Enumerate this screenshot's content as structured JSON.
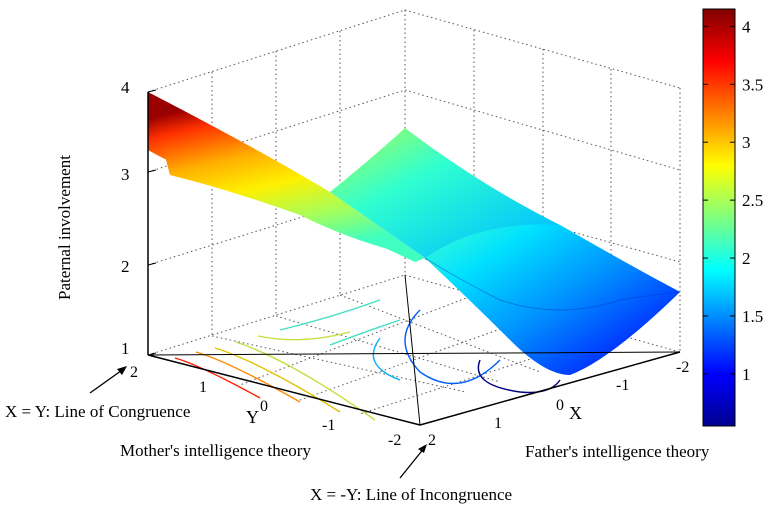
{
  "chart_data": {
    "type": "surface",
    "title": "",
    "zlabel": "Paternal involvement",
    "x_axis_title": "Father's intelligence theory",
    "y_axis_title": "Mother's intelligence theory",
    "x_axis_letter": "X",
    "y_axis_letter": "Y",
    "z_ticks": [
      "1",
      "2",
      "3",
      "4"
    ],
    "x_ticks": [
      "2",
      "1",
      "0",
      "-1",
      "-2"
    ],
    "y_ticks": [
      "2",
      "1",
      "0",
      "-1",
      "-2"
    ],
    "colorbar_ticks": [
      "1",
      "1.5",
      "2",
      "2.5",
      "3",
      "3.5",
      "4"
    ],
    "colorbar_range": [
      0.55,
      4.15
    ],
    "zlim": [
      1,
      4
    ],
    "xlim": [
      -2,
      2
    ],
    "ylim": [
      -2,
      2
    ],
    "colormap": "jet",
    "grid": true,
    "annotations": [
      "X = Y: Line of Congruence",
      "X = -Y: Line of Incongruence"
    ],
    "surface_corner_values": [
      {
        "x": 2,
        "y": 2,
        "z": 3.9
      },
      {
        "x": -2,
        "y": -2,
        "z": 1.7
      },
      {
        "x": 2,
        "y": -2,
        "z": 2.1
      },
      {
        "x": -2,
        "y": 2,
        "z": 2.6
      },
      {
        "x": -0.5,
        "y": 0.5,
        "z": 0.6
      }
    ]
  }
}
